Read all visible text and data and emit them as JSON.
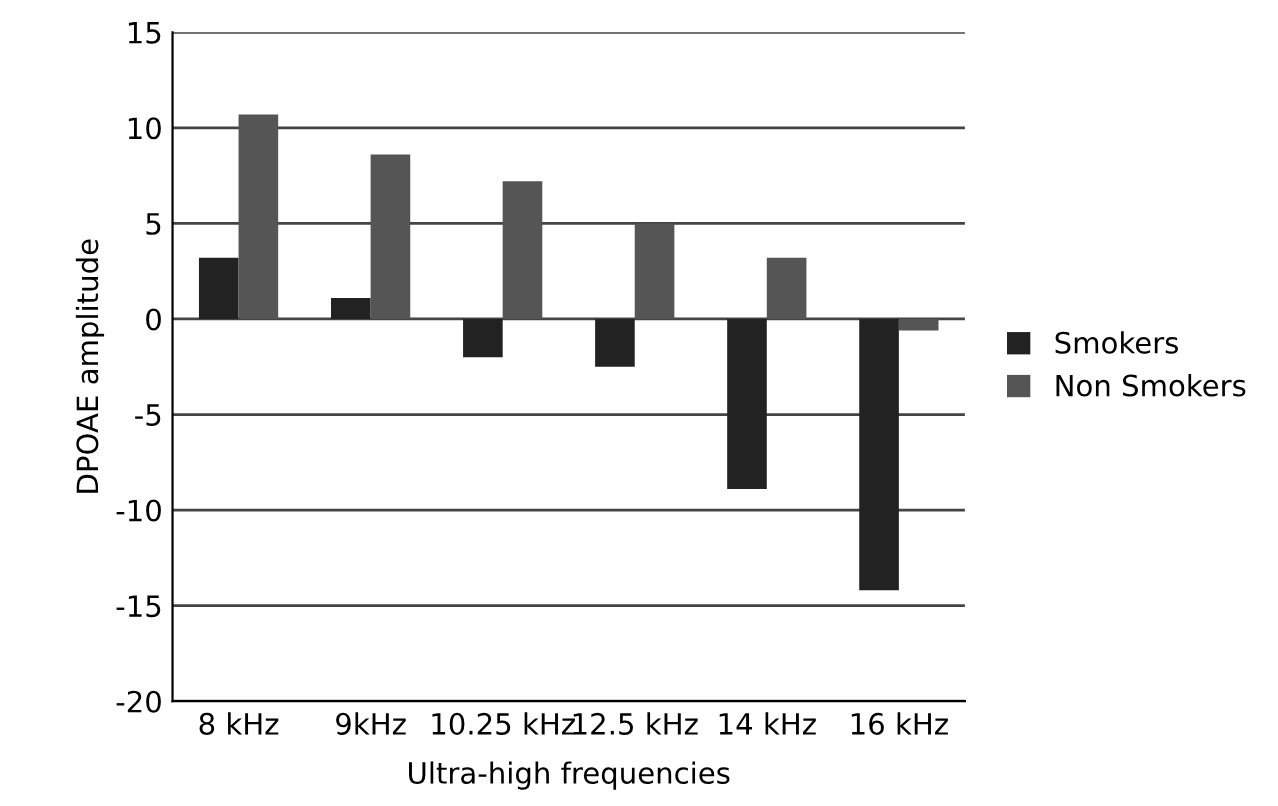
{
  "chart_data": {
    "type": "bar",
    "xlabel": "Ultra-high frequencies",
    "ylabel": "DPOAE amplitude",
    "categories": [
      "8 kHz",
      "9kHz",
      "10.25 kHz",
      "12.5 kHz",
      "14 kHz",
      "16 kHz"
    ],
    "series": [
      {
        "name": "Smokers",
        "color": "#222222",
        "values": [
          3.2,
          1.1,
          -2.0,
          -2.5,
          -8.9,
          -14.2
        ]
      },
      {
        "name": "Non Smokers",
        "color": "#555555",
        "values": [
          10.7,
          8.6,
          7.2,
          5.0,
          3.2,
          -0.6
        ]
      }
    ],
    "ylim": [
      -20,
      15
    ],
    "yticks": [
      -20,
      -15,
      -10,
      -5,
      0,
      5,
      10,
      15
    ],
    "grid": "y",
    "legend": "right"
  }
}
